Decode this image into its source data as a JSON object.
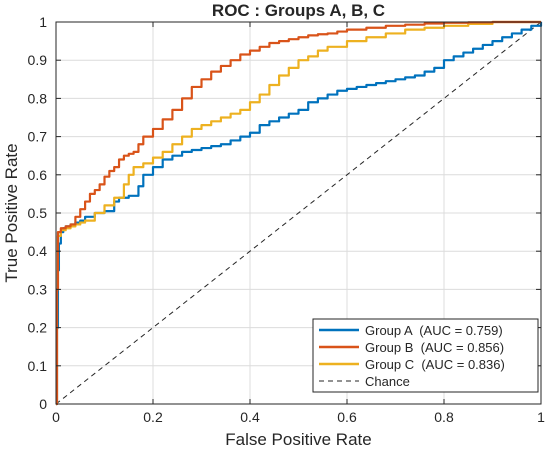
{
  "chart_data": {
    "type": "line",
    "title": "ROC : Groups A, B, C",
    "xlabel": "False Positive Rate",
    "ylabel": "True Positive Rate",
    "xlim": [
      0,
      1
    ],
    "ylim": [
      0,
      1
    ],
    "xticks": [
      0,
      0.2,
      0.4,
      0.6,
      0.8,
      1
    ],
    "yticks": [
      0,
      0.1,
      0.2,
      0.3,
      0.4,
      0.5,
      0.6,
      0.7,
      0.8,
      0.9,
      1
    ],
    "xtick_labels": [
      "0",
      "0.2",
      "0.4",
      "0.6",
      "0.8",
      "1"
    ],
    "ytick_labels": [
      "0",
      "0.1",
      "0.2",
      "0.3",
      "0.4",
      "0.5",
      "0.6",
      "0.7",
      "0.8",
      "0.9",
      "1"
    ],
    "grid": true,
    "legend_position": "bottom-right",
    "series": [
      {
        "name": "Group A  (AUC = 0.759)",
        "color": "#0072BD",
        "x": [
          0,
          0.002,
          0.004,
          0.006,
          0.01,
          0.015,
          0.02,
          0.03,
          0.04,
          0.05,
          0.06,
          0.08,
          0.1,
          0.12,
          0.13,
          0.15,
          0.17,
          0.18,
          0.2,
          0.22,
          0.24,
          0.26,
          0.28,
          0.3,
          0.32,
          0.34,
          0.36,
          0.38,
          0.4,
          0.42,
          0.44,
          0.46,
          0.48,
          0.5,
          0.52,
          0.54,
          0.56,
          0.58,
          0.6,
          0.62,
          0.64,
          0.66,
          0.68,
          0.7,
          0.72,
          0.74,
          0.76,
          0.78,
          0.8,
          0.82,
          0.84,
          0.86,
          0.88,
          0.9,
          0.92,
          0.94,
          0.96,
          0.98,
          1
        ],
        "y": [
          0,
          0.2,
          0.35,
          0.42,
          0.45,
          0.46,
          0.465,
          0.47,
          0.475,
          0.48,
          0.49,
          0.5,
          0.505,
          0.53,
          0.54,
          0.545,
          0.57,
          0.6,
          0.62,
          0.64,
          0.65,
          0.66,
          0.665,
          0.67,
          0.675,
          0.68,
          0.69,
          0.7,
          0.71,
          0.73,
          0.74,
          0.75,
          0.76,
          0.77,
          0.79,
          0.8,
          0.81,
          0.82,
          0.825,
          0.83,
          0.835,
          0.84,
          0.845,
          0.85,
          0.855,
          0.86,
          0.87,
          0.88,
          0.9,
          0.91,
          0.92,
          0.93,
          0.94,
          0.95,
          0.96,
          0.97,
          0.98,
          0.99,
          1
        ]
      },
      {
        "name": "Group B  (AUC = 0.856)",
        "color": "#D95319",
        "x": [
          0,
          0.002,
          0.004,
          0.01,
          0.02,
          0.03,
          0.04,
          0.05,
          0.06,
          0.07,
          0.08,
          0.09,
          0.1,
          0.11,
          0.12,
          0.13,
          0.14,
          0.15,
          0.16,
          0.17,
          0.18,
          0.2,
          0.22,
          0.24,
          0.26,
          0.28,
          0.3,
          0.32,
          0.34,
          0.36,
          0.38,
          0.4,
          0.42,
          0.44,
          0.46,
          0.48,
          0.5,
          0.52,
          0.54,
          0.56,
          0.58,
          0.6,
          0.64,
          0.68,
          0.72,
          0.76,
          0.8,
          0.85,
          0.9,
          1
        ],
        "y": [
          0,
          0.3,
          0.45,
          0.46,
          0.465,
          0.47,
          0.49,
          0.51,
          0.53,
          0.55,
          0.56,
          0.575,
          0.595,
          0.61,
          0.62,
          0.64,
          0.65,
          0.655,
          0.66,
          0.68,
          0.7,
          0.72,
          0.745,
          0.77,
          0.8,
          0.83,
          0.85,
          0.87,
          0.885,
          0.9,
          0.915,
          0.925,
          0.935,
          0.945,
          0.95,
          0.955,
          0.96,
          0.965,
          0.968,
          0.97,
          0.975,
          0.98,
          0.985,
          0.99,
          0.993,
          0.996,
          0.998,
          0.999,
          1,
          1
        ]
      },
      {
        "name": "Group C  (AUC = 0.836)",
        "color": "#EDB120",
        "x": [
          0,
          0.002,
          0.004,
          0.01,
          0.02,
          0.03,
          0.04,
          0.05,
          0.06,
          0.08,
          0.1,
          0.12,
          0.14,
          0.15,
          0.16,
          0.18,
          0.2,
          0.22,
          0.24,
          0.26,
          0.28,
          0.3,
          0.32,
          0.34,
          0.36,
          0.38,
          0.4,
          0.42,
          0.44,
          0.46,
          0.48,
          0.5,
          0.52,
          0.54,
          0.56,
          0.6,
          0.64,
          0.68,
          0.72,
          0.76,
          0.8,
          0.85,
          0.9,
          1
        ],
        "y": [
          0,
          0.3,
          0.44,
          0.455,
          0.46,
          0.465,
          0.47,
          0.475,
          0.48,
          0.5,
          0.52,
          0.54,
          0.575,
          0.6,
          0.62,
          0.63,
          0.645,
          0.66,
          0.68,
          0.7,
          0.72,
          0.73,
          0.74,
          0.75,
          0.76,
          0.77,
          0.79,
          0.81,
          0.835,
          0.86,
          0.88,
          0.9,
          0.91,
          0.925,
          0.935,
          0.95,
          0.96,
          0.97,
          0.98,
          0.985,
          0.99,
          0.995,
          1,
          1
        ]
      },
      {
        "name": "Chance",
        "color": "#262626",
        "dashed": true,
        "x": [
          0,
          1
        ],
        "y": [
          0,
          1
        ]
      }
    ]
  }
}
